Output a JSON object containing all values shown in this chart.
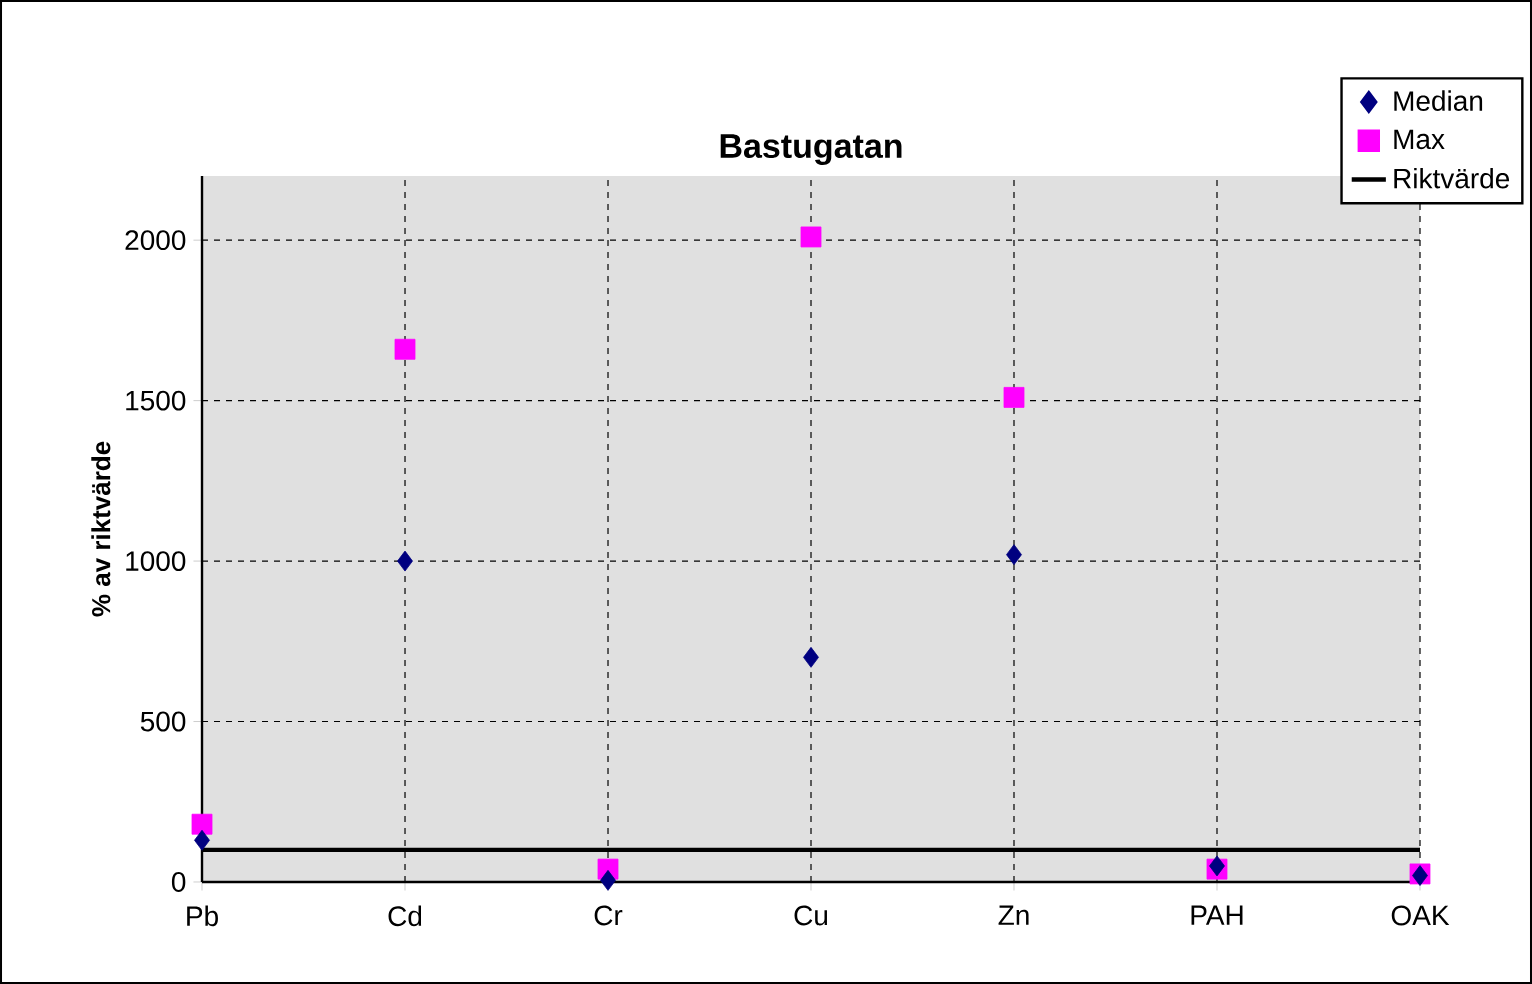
{
  "chart_data": {
    "type": "scatter",
    "title": "Bastugatan",
    "ylabel": "% av riktvärde",
    "categories": [
      "Pb",
      "Cd",
      "Cr",
      "Cu",
      "Zn",
      "PAH",
      "OAK"
    ],
    "series": [
      {
        "name": "Median",
        "color": "#000080",
        "marker": "diamond",
        "values": [
          130,
          1000,
          5,
          700,
          1020,
          50,
          20
        ]
      },
      {
        "name": "Max",
        "color": "#ff00ff",
        "marker": "square",
        "values": [
          180,
          1660,
          40,
          2010,
          1510,
          40,
          25
        ]
      },
      {
        "name": "Riktvärde",
        "type": "line",
        "color": "#000000",
        "line_style": "solid",
        "values": [
          100,
          100,
          100,
          100,
          100,
          100,
          100
        ]
      }
    ],
    "ylim": [
      0,
      2200
    ],
    "yticks": [
      0,
      500,
      1000,
      1500,
      2000
    ],
    "grid": true,
    "legend": "top right"
  }
}
